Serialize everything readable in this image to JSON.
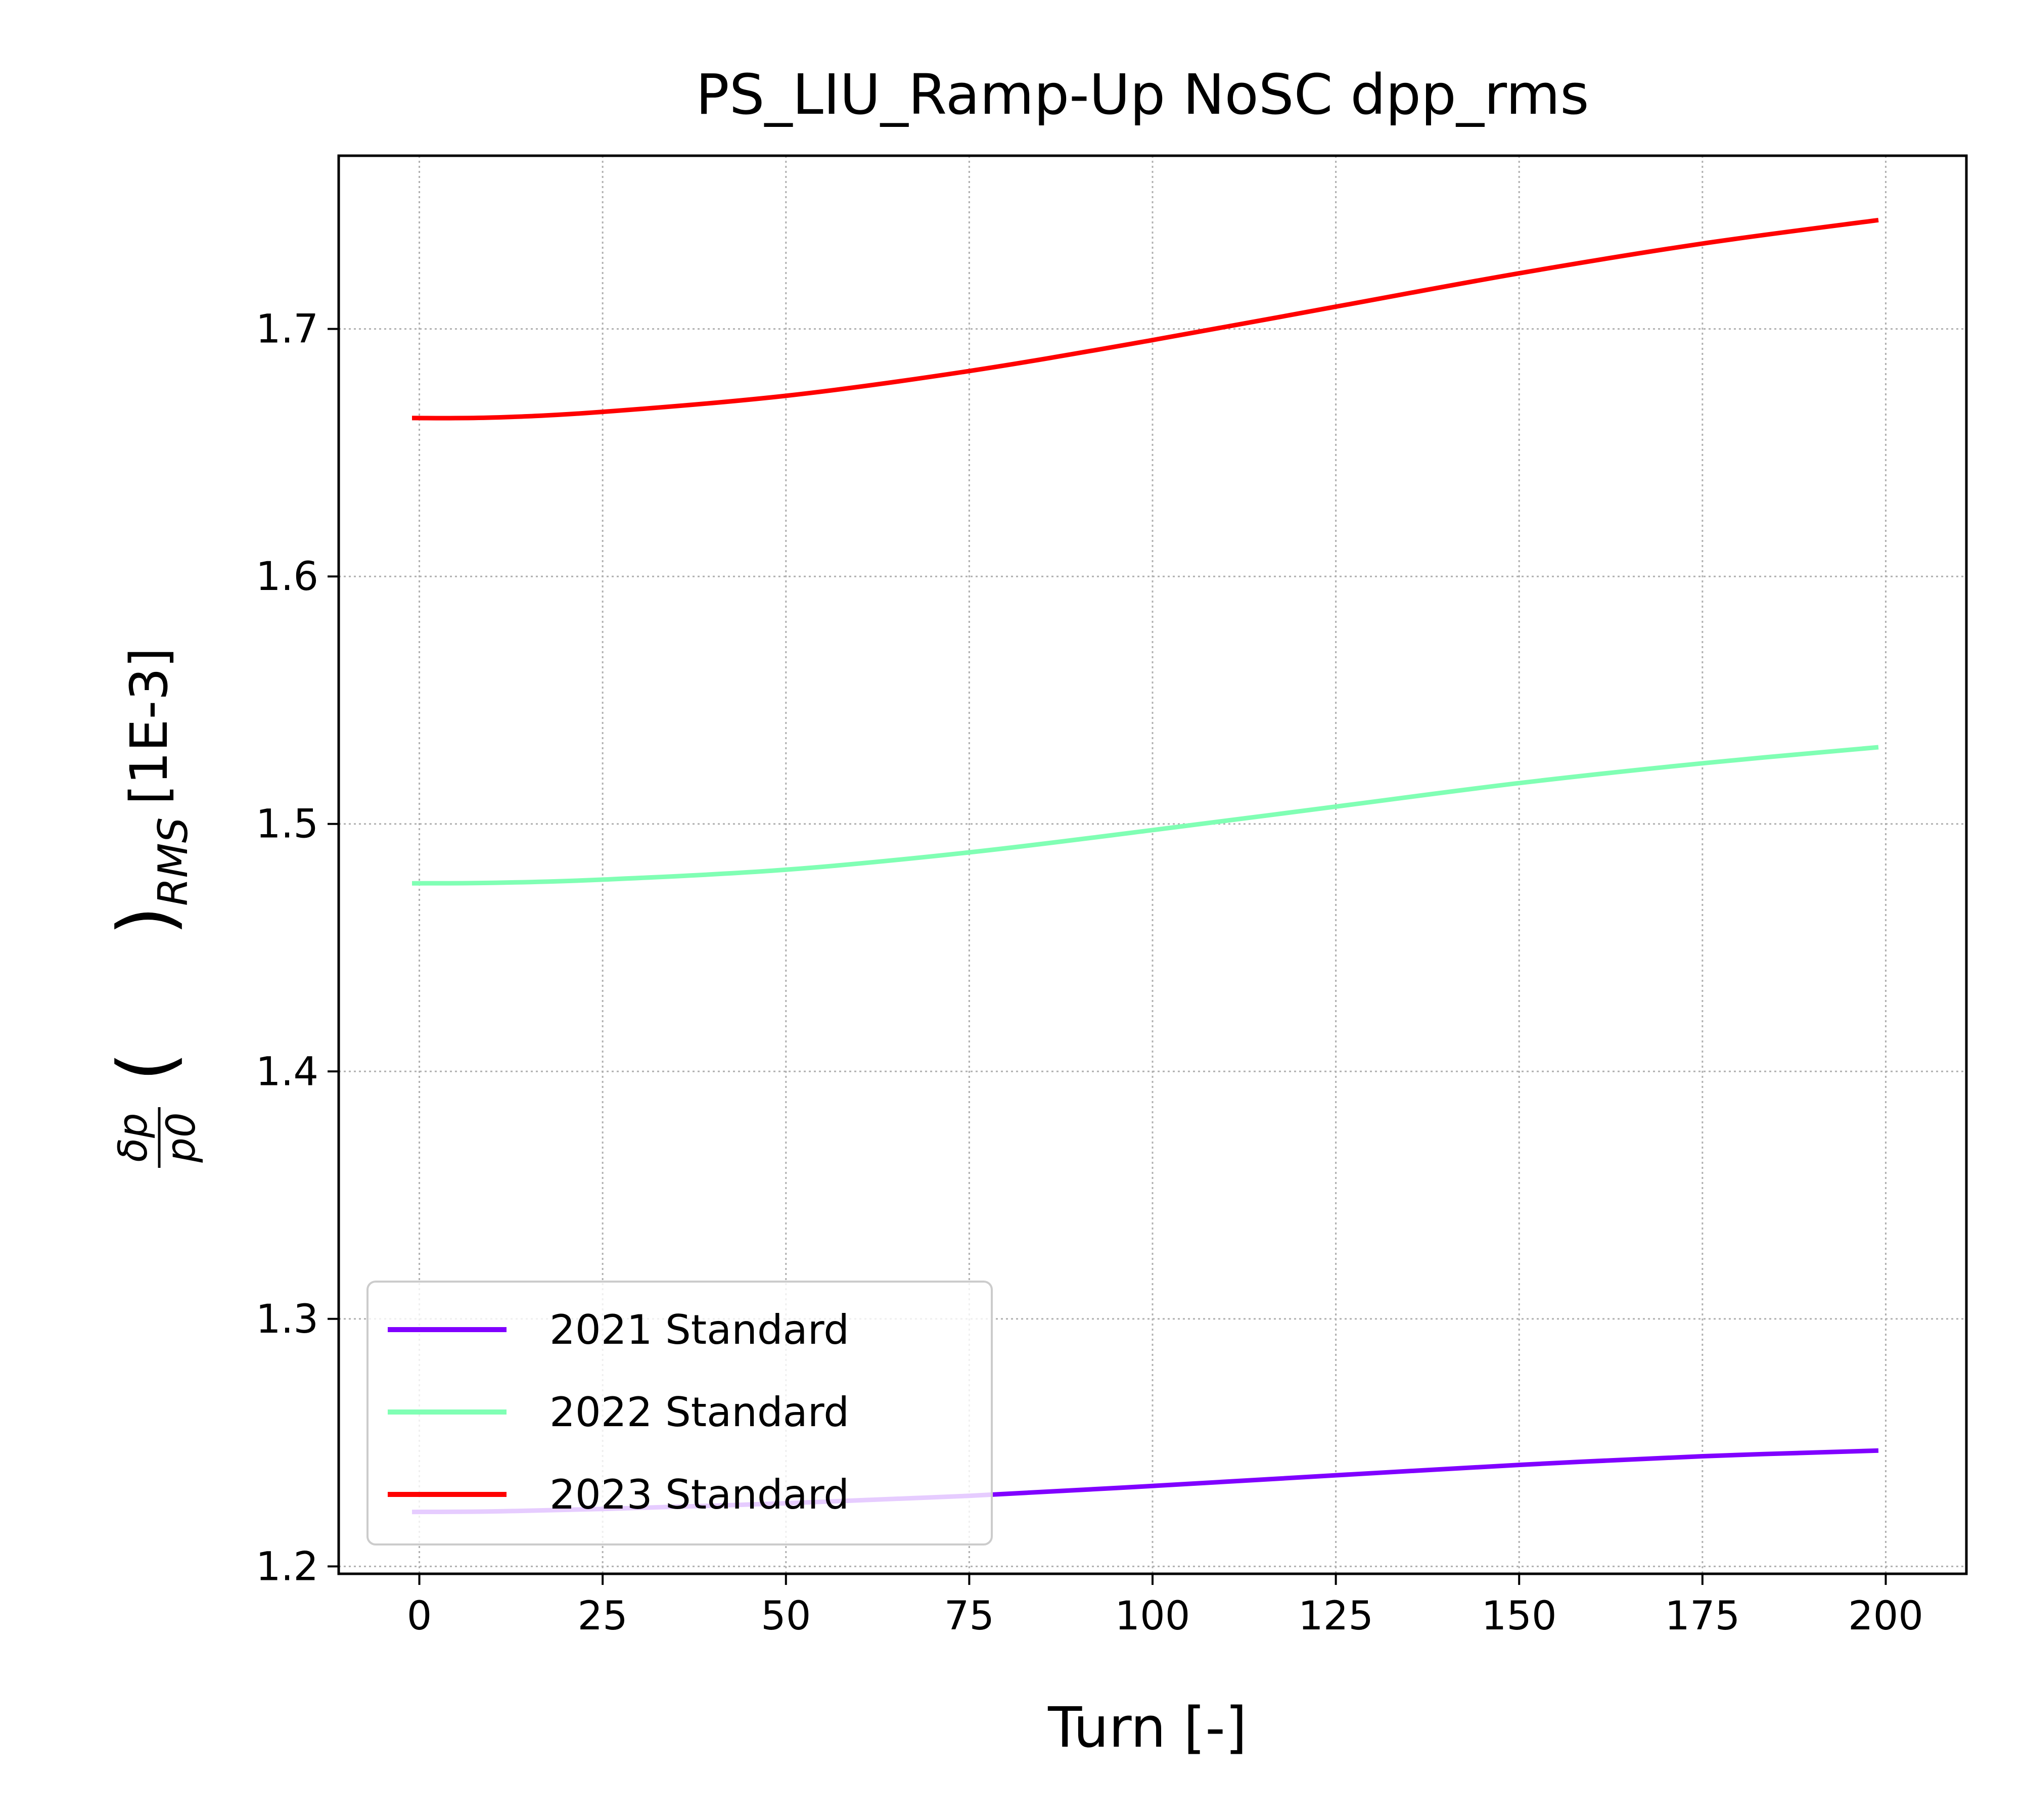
{
  "chart_data": {
    "type": "line",
    "title": "PS_LIU_Ramp-Up NoSC dpp_rms",
    "xlabel": "Turn [-]",
    "ylabel": "(δp/p0)RMS [1E-3]",
    "ylabel_parts": {
      "numerator": "δp",
      "denominator": "p0",
      "subscript": "RMS",
      "unit": "[1E-3]"
    },
    "xlim": [
      -11,
      211
    ],
    "ylim": [
      1.197,
      1.77
    ],
    "xticks": [
      0,
      25,
      50,
      75,
      100,
      125,
      150,
      175,
      200
    ],
    "yticks": [
      1.2,
      1.3,
      1.4,
      1.5,
      1.6,
      1.7
    ],
    "xtick_labels": [
      "0",
      "25",
      "50",
      "75",
      "100",
      "125",
      "150",
      "175",
      "200"
    ],
    "ytick_labels": [
      "1.2",
      "1.3",
      "1.4",
      "1.5",
      "1.6",
      "1.7"
    ],
    "grid": true,
    "legend_position": "lower-left",
    "x": [
      -1,
      10,
      25,
      50,
      75,
      100,
      125,
      150,
      175,
      199
    ],
    "series": [
      {
        "name": "2021 Standard",
        "color": "#8000ff",
        "values": [
          1.222,
          1.2222,
          1.2232,
          1.2255,
          1.2285,
          1.2325,
          1.2368,
          1.241,
          1.2445,
          1.2468
        ]
      },
      {
        "name": "2022 Standard",
        "color": "#80ffb4",
        "values": [
          1.476,
          1.4762,
          1.4775,
          1.4815,
          1.4885,
          1.4975,
          1.507,
          1.5165,
          1.5245,
          1.531
        ]
      },
      {
        "name": "2023 Standard",
        "color": "#ff0000",
        "values": [
          1.664,
          1.6642,
          1.6665,
          1.673,
          1.683,
          1.6955,
          1.709,
          1.7225,
          1.7345,
          1.744
        ]
      }
    ]
  }
}
